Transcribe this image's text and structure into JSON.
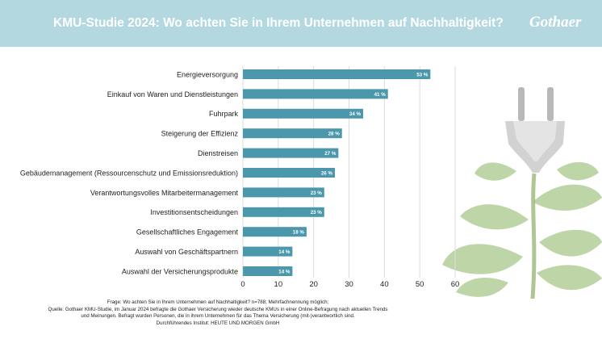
{
  "header": {
    "title": "KMU-Studie 2024: Wo achten Sie in Ihrem Unternehmen auf Nachhaltigkeit?",
    "logo": "Gothaer"
  },
  "colors": {
    "header_bg": "#b3d8e0",
    "bar": "#4b97ab",
    "grid": "#dcdcdc",
    "text": "#222222"
  },
  "chart_data": {
    "type": "bar",
    "orientation": "horizontal",
    "categories": [
      "Energieversorgung",
      "Einkauf von Waren und Dienstleistungen",
      "Fuhrpark",
      "Steigerung der Effizienz",
      "Dienstreisen",
      "Gebäudemanagement (Ressourcenschutz und Emissionsreduktion)",
      "Verantwortungsvolles Mitarbeitermanagement",
      "Investitionsentscheidungen",
      "Gesellschaftliches Engagement",
      "Auswahl von Geschäftspartnern",
      "Auswahl der Versicherungsprodukte"
    ],
    "values": [
      53,
      41,
      34,
      28,
      27,
      26,
      23,
      23,
      18,
      14,
      14
    ],
    "value_labels": [
      "53 %",
      "41 %",
      "34 %",
      "28 %",
      "27 %",
      "26 %",
      "23 %",
      "23 %",
      "18 %",
      "14 %",
      "14 %"
    ],
    "xlim": [
      0,
      60
    ],
    "xticks": [
      "0",
      "10",
      "20",
      "30",
      "40",
      "50",
      "60"
    ],
    "xtick_values": [
      0,
      10,
      20,
      30,
      40,
      50,
      60
    ],
    "grid": true,
    "legend": "none"
  },
  "footnote": {
    "lines": [
      "Frage: Wo achten Sie in Ihrem Unternehmen auf Nachhaltigkeit? n=788; Mehrfachnennung möglich;",
      "Quelle: Gothaer KMU-Studie, im Januar 2024 befragte die Gothaer Versicherung wieder deutsche KMUs in einer Online-Befragung nach aktuellen Trends",
      "und Meinungen. Befragt wurden Personen, die in ihrem Unternehmen für das Thema Versicherung (mit-)verantwortlich sind.",
      "Durchführendes Institut: HEUTE UND MORGEN GmbH"
    ]
  }
}
